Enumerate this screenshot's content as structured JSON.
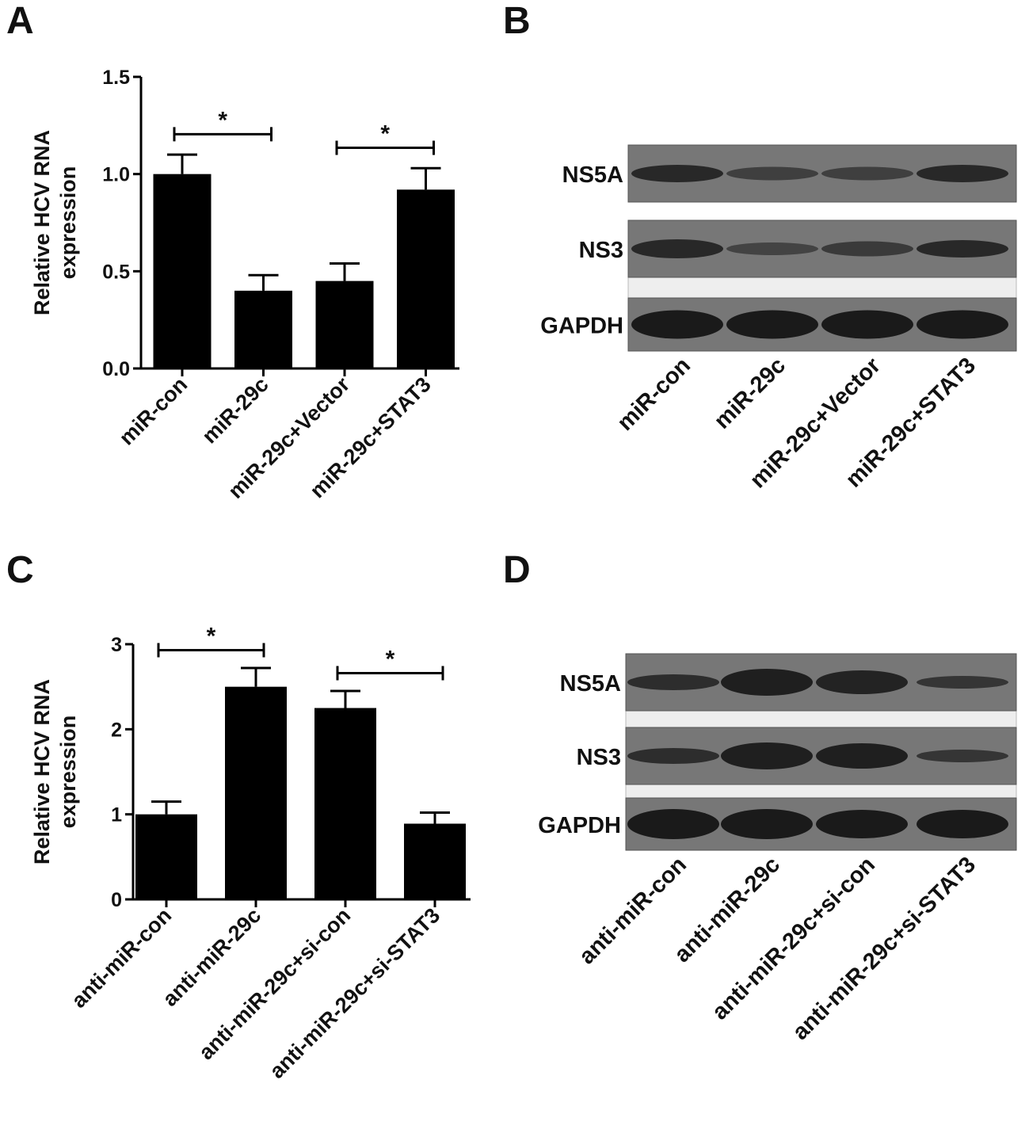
{
  "chart_data": [
    {
      "type": "bar",
      "panel": "A",
      "ylabel": [
        "Relative HCV RNA",
        "expression"
      ],
      "categories": [
        "miR-con",
        "miR-29c",
        "miR-29c+Vector",
        "miR-29c+STAT3"
      ],
      "values": [
        1.0,
        0.4,
        0.45,
        0.92
      ],
      "errors": [
        0.1,
        0.08,
        0.09,
        0.11
      ],
      "color": "#000000",
      "ylim": [
        0,
        1.5
      ],
      "yticks": [
        {
          "value": 0,
          "label": "0.0"
        },
        0.5,
        {
          "value": 1,
          "label": "1.0"
        },
        1.5
      ],
      "annotations": [
        {
          "label": "*",
          "from": 0,
          "to": 1
        },
        {
          "label": "*",
          "from": 2,
          "to": 3
        }
      ]
    },
    {
      "type": "bar",
      "panel": "C",
      "ylabel": [
        "Relative HCV RNA",
        "expression"
      ],
      "categories": [
        "anti-miR-con",
        "anti-miR-29c",
        "anti-miR-29c+si-con",
        "anti-miR-29c+si-STAT3"
      ],
      "values": [
        1.0,
        2.5,
        2.25,
        0.89
      ],
      "errors": [
        0.15,
        0.22,
        0.2,
        0.13
      ],
      "color": "#000000",
      "ylim": [
        0,
        3
      ],
      "yticks": [
        0,
        1,
        2,
        3
      ],
      "annotations": [
        {
          "label": "*",
          "from": 0,
          "to": 1
        },
        {
          "label": "*",
          "from": 2,
          "to": 3
        }
      ]
    }
  ],
  "blots": [
    {
      "panel": "B",
      "rows": [
        "NS5A",
        "NS3",
        "GAPDH"
      ],
      "lanes": [
        "miR-con",
        "miR-29c",
        "miR-29c+Vector",
        "miR-29c+STAT3"
      ]
    },
    {
      "panel": "D",
      "rows": [
        "NS5A",
        "NS3",
        "GAPDH"
      ],
      "lanes": [
        "anti-miR-con",
        "anti-miR-29c",
        "anti-miR-29c+si-con",
        "anti-miR-29c+si-STAT3"
      ]
    }
  ]
}
